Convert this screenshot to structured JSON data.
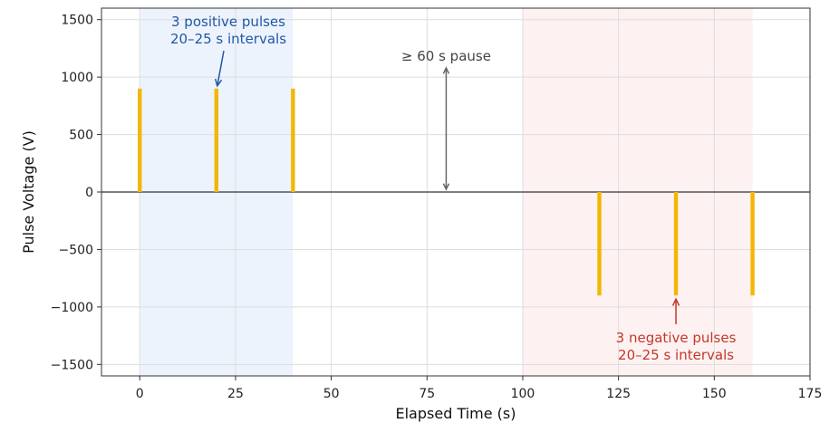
{
  "chart_data": {
    "type": "bar",
    "title": "",
    "xlabel": "Elapsed Time (s)",
    "ylabel": "Pulse Voltage (V)",
    "xlim": [
      -10,
      175
    ],
    "ylim": [
      -1600,
      1600
    ],
    "xticks": [
      0,
      25,
      50,
      75,
      100,
      125,
      150,
      175
    ],
    "yticks": [
      -1500,
      -1000,
      -500,
      0,
      500,
      1000,
      1500
    ],
    "xtick_labels": [
      "0",
      "25",
      "50",
      "75",
      "100",
      "125",
      "150",
      "175"
    ],
    "ytick_labels": [
      "−1500",
      "−1000",
      "−500",
      "0",
      "500",
      "1000",
      "1500"
    ],
    "grid": true,
    "x": [
      0,
      20,
      40,
      120,
      140,
      160
    ],
    "values": [
      900,
      900,
      900,
      -900,
      -900,
      -900
    ],
    "bar_color": "#f2b705",
    "shaded_regions": [
      {
        "x_start": 0,
        "x_end": 40,
        "color": "#dbe7fb"
      },
      {
        "x_start": 100,
        "x_end": 160,
        "color": "#fde3e3"
      }
    ],
    "annotations": [
      {
        "lines": [
          "3 positive pulses",
          "20–25 s intervals"
        ],
        "color": "#1f58a6",
        "arrow_to": [
          20,
          900
        ]
      },
      {
        "lines": [
          "≥ 60 s pause"
        ],
        "color": "#444444",
        "arrow_from": [
          80,
          1080
        ],
        "arrow_to": [
          80,
          0
        ]
      },
      {
        "lines": [
          "3 negative pulses",
          "20–25 s intervals"
        ],
        "color": "#c0392b",
        "arrow_to": [
          140,
          -900
        ]
      }
    ]
  }
}
